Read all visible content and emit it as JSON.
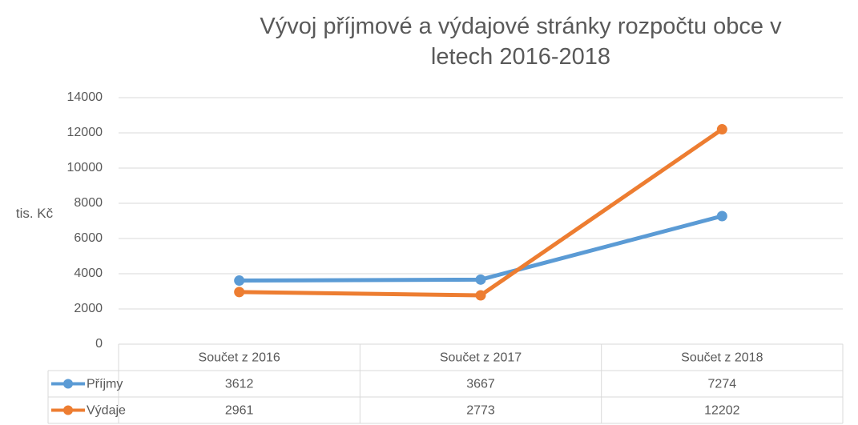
{
  "chart_data": {
    "type": "line",
    "title": "Vývoj příjmové a výdajové stránky rozpočtu obce v letech 2016-2018",
    "y_label": "tis. Kč",
    "categories": [
      "Součet z 2016",
      "Součet z 2017",
      "Součet z 2018"
    ],
    "series": [
      {
        "name": "Příjmy",
        "color": "#5b9bd5",
        "values": [
          3612,
          3667,
          7274
        ]
      },
      {
        "name": "Výdaje",
        "color": "#ed7d31",
        "values": [
          2961,
          2773,
          12202
        ]
      }
    ],
    "ylim": [
      0,
      14000
    ],
    "yticks": [
      0,
      2000,
      4000,
      6000,
      8000,
      10000,
      12000,
      14000
    ],
    "grid": true,
    "data_table": true
  }
}
